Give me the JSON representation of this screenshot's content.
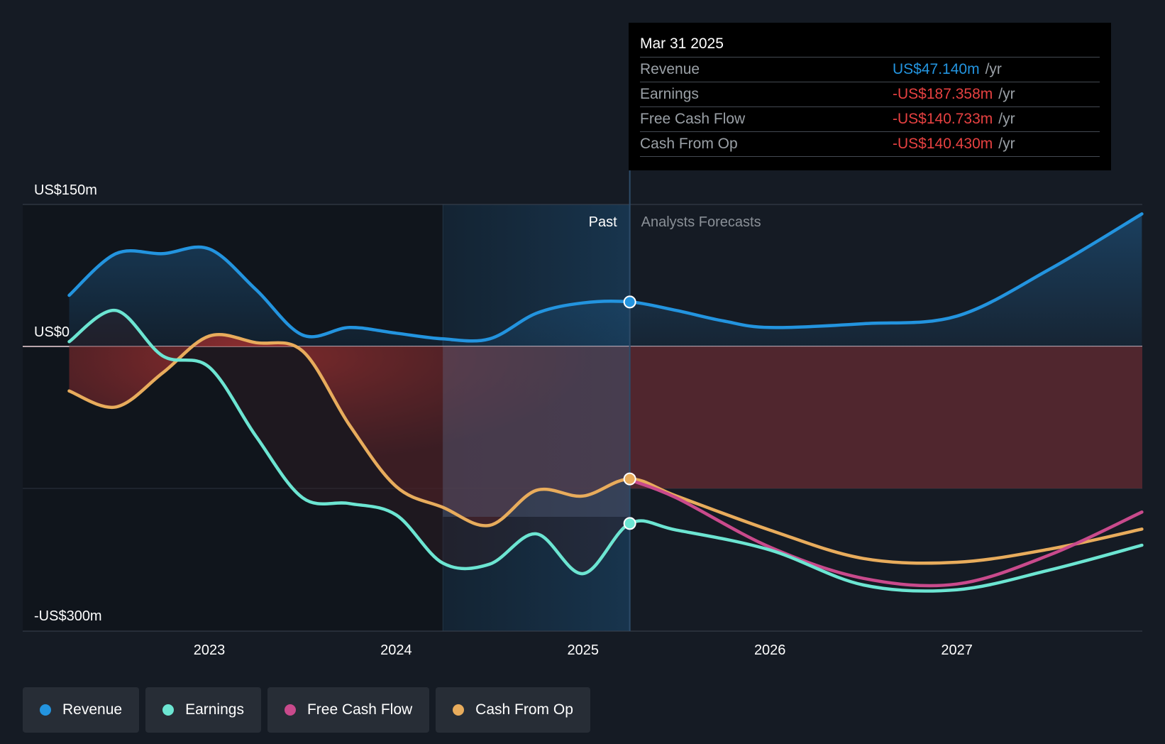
{
  "tooltip": {
    "date": "Mar 31 2025",
    "rows": [
      {
        "name": "Revenue",
        "value": "US$47.140m",
        "unit": "/yr",
        "color": "#2394df"
      },
      {
        "name": "Earnings",
        "value": "-US$187.358m",
        "unit": "/yr",
        "color": "#e64141"
      },
      {
        "name": "Free Cash Flow",
        "value": "-US$140.733m",
        "unit": "/yr",
        "color": "#e64141"
      },
      {
        "name": "Cash From Op",
        "value": "-US$140.430m",
        "unit": "/yr",
        "color": "#e64141"
      }
    ]
  },
  "legend": [
    {
      "label": "Revenue",
      "color": "#2394df"
    },
    {
      "label": "Earnings",
      "color": "#6ce5d2"
    },
    {
      "label": "Free Cash Flow",
      "color": "#c94a8c"
    },
    {
      "label": "Cash From Op",
      "color": "#e8ac5c"
    }
  ],
  "chart_data": {
    "type": "line",
    "x_ticks": [
      2023,
      2024,
      2025,
      2026,
      2027
    ],
    "y_ticks": [
      {
        "value": 150,
        "label": "US$150m"
      },
      {
        "value": 0,
        "label": "US$0"
      },
      {
        "value": -300,
        "label": "-US$300m"
      }
    ],
    "ylim": [
      -300,
      150
    ],
    "xlim": [
      2022.0,
      2028.0
    ],
    "past_label": "Past",
    "forecast_label": "Analysts Forecasts",
    "divider_x": 2025.25,
    "highlight_start_x": 2024.25,
    "series": [
      {
        "name": "Revenue",
        "color": "#2394df",
        "points": [
          [
            2022.25,
            54
          ],
          [
            2022.5,
            98
          ],
          [
            2022.75,
            98
          ],
          [
            2023.0,
            103
          ],
          [
            2023.25,
            60
          ],
          [
            2023.5,
            12
          ],
          [
            2023.75,
            20
          ],
          [
            2024.0,
            14
          ],
          [
            2024.25,
            8
          ],
          [
            2024.5,
            8
          ],
          [
            2024.75,
            35
          ],
          [
            2025.0,
            46
          ],
          [
            2025.25,
            47
          ],
          [
            2025.5,
            38
          ],
          [
            2025.75,
            27
          ],
          [
            2026.0,
            20
          ],
          [
            2026.5,
            24
          ],
          [
            2027.0,
            32
          ],
          [
            2027.5,
            82
          ],
          [
            2027.99,
            140
          ]
        ]
      },
      {
        "name": "Earnings",
        "color": "#6ce5d2",
        "points": [
          [
            2022.25,
            5
          ],
          [
            2022.5,
            38
          ],
          [
            2022.75,
            -10
          ],
          [
            2023.0,
            -22
          ],
          [
            2023.25,
            -95
          ],
          [
            2023.5,
            -160
          ],
          [
            2023.75,
            -166
          ],
          [
            2024.0,
            -178
          ],
          [
            2024.25,
            -229
          ],
          [
            2024.5,
            -230
          ],
          [
            2024.75,
            -198
          ],
          [
            2025.0,
            -240
          ],
          [
            2025.25,
            -187
          ],
          [
            2025.5,
            -194
          ],
          [
            2026.0,
            -215
          ],
          [
            2026.5,
            -252
          ],
          [
            2027.0,
            -257
          ],
          [
            2027.5,
            -236
          ],
          [
            2027.99,
            -210
          ]
        ]
      },
      {
        "name": "Free Cash Flow",
        "color": "#c94a8c",
        "points": [
          [
            2025.25,
            -141
          ],
          [
            2025.5,
            -160
          ],
          [
            2026.0,
            -212
          ],
          [
            2026.5,
            -245
          ],
          [
            2027.0,
            -251
          ],
          [
            2027.5,
            -220
          ],
          [
            2027.99,
            -175
          ]
        ]
      },
      {
        "name": "Cash From Op",
        "color": "#e8ac5c",
        "points": [
          [
            2022.25,
            -47
          ],
          [
            2022.5,
            -64
          ],
          [
            2022.75,
            -28
          ],
          [
            2023.0,
            11
          ],
          [
            2023.25,
            4
          ],
          [
            2023.5,
            -5
          ],
          [
            2023.75,
            -83
          ],
          [
            2024.0,
            -148
          ],
          [
            2024.25,
            -170
          ],
          [
            2024.5,
            -189
          ],
          [
            2024.75,
            -152
          ],
          [
            2025.0,
            -158
          ],
          [
            2025.25,
            -140
          ],
          [
            2025.5,
            -158
          ],
          [
            2026.0,
            -194
          ],
          [
            2026.5,
            -224
          ],
          [
            2027.0,
            -228
          ],
          [
            2027.5,
            -214
          ],
          [
            2027.99,
            -193
          ]
        ]
      }
    ],
    "markers": [
      {
        "series": "Revenue",
        "x": 2025.25,
        "y": 47
      },
      {
        "series": "Cash From Op",
        "x": 2025.25,
        "y": -140
      },
      {
        "series": "Earnings",
        "x": 2025.25,
        "y": -187
      }
    ]
  }
}
